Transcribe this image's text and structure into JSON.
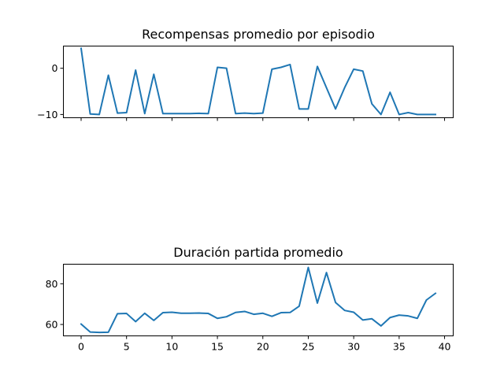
{
  "chart_data": [
    {
      "type": "line",
      "title": "Recompensas promedio por episodio",
      "xlabel": "",
      "ylabel": "",
      "xlim": [
        -1.95,
        40.95
      ],
      "ylim": [
        -10.7,
        4.8
      ],
      "yticks": [
        0,
        -10
      ],
      "ytick_labels": [
        "0",
        "−10"
      ],
      "xticks": [
        0,
        5,
        10,
        15,
        20,
        25,
        30,
        35,
        40
      ],
      "xtick_labels": [],
      "grid": false,
      "color": "#1f77b4",
      "x": [
        0,
        1,
        2,
        3,
        4,
        5,
        6,
        7,
        8,
        9,
        10,
        11,
        12,
        13,
        14,
        15,
        16,
        17,
        18,
        19,
        20,
        21,
        22,
        23,
        24,
        25,
        26,
        27,
        28,
        29,
        30,
        31,
        32,
        33,
        34,
        35,
        36,
        37,
        38,
        39
      ],
      "values": [
        4.3,
        -9.9,
        -10.0,
        -1.5,
        -9.7,
        -9.6,
        -0.4,
        -9.8,
        -1.3,
        -9.8,
        -9.8,
        -9.8,
        -9.8,
        -9.75,
        -9.8,
        0.2,
        0.0,
        -9.8,
        -9.7,
        -9.8,
        -9.7,
        -0.2,
        0.2,
        0.8,
        -8.8,
        -8.8,
        0.4,
        -4.2,
        -8.8,
        -4.2,
        -0.2,
        -0.6,
        -7.7,
        -10.0,
        -5.2,
        -10.0,
        -9.6,
        -10.0,
        -10.0,
        -10.0
      ]
    },
    {
      "type": "line",
      "title": "Duración partida promedio",
      "xlabel": "",
      "ylabel": "",
      "xlim": [
        -1.95,
        40.95
      ],
      "ylim": [
        54.4,
        89.6
      ],
      "yticks": [
        60,
        80
      ],
      "ytick_labels": [
        "60",
        "80"
      ],
      "xticks": [
        0,
        5,
        10,
        15,
        20,
        25,
        30,
        35,
        40
      ],
      "xtick_labels": [
        "0",
        "5",
        "10",
        "15",
        "20",
        "25",
        "30",
        "35",
        "40"
      ],
      "grid": false,
      "color": "#1f77b4",
      "x": [
        0,
        1,
        2,
        3,
        4,
        5,
        6,
        7,
        8,
        9,
        10,
        11,
        12,
        13,
        14,
        15,
        16,
        17,
        18,
        19,
        20,
        21,
        22,
        23,
        24,
        25,
        26,
        27,
        28,
        29,
        30,
        31,
        32,
        33,
        34,
        35,
        36,
        37,
        38,
        39
      ],
      "values": [
        60.2,
        56.3,
        56.1,
        56.2,
        65.3,
        65.4,
        61.4,
        65.5,
        62.0,
        65.8,
        66.0,
        65.5,
        65.5,
        65.6,
        65.4,
        63.0,
        63.8,
        65.9,
        66.4,
        65.0,
        65.5,
        64.0,
        65.8,
        65.9,
        69.0,
        88.0,
        70.5,
        85.5,
        70.8,
        66.9,
        66.0,
        62.2,
        62.8,
        59.3,
        63.4,
        64.6,
        64.2,
        63.0,
        72.0,
        75.3
      ]
    }
  ]
}
